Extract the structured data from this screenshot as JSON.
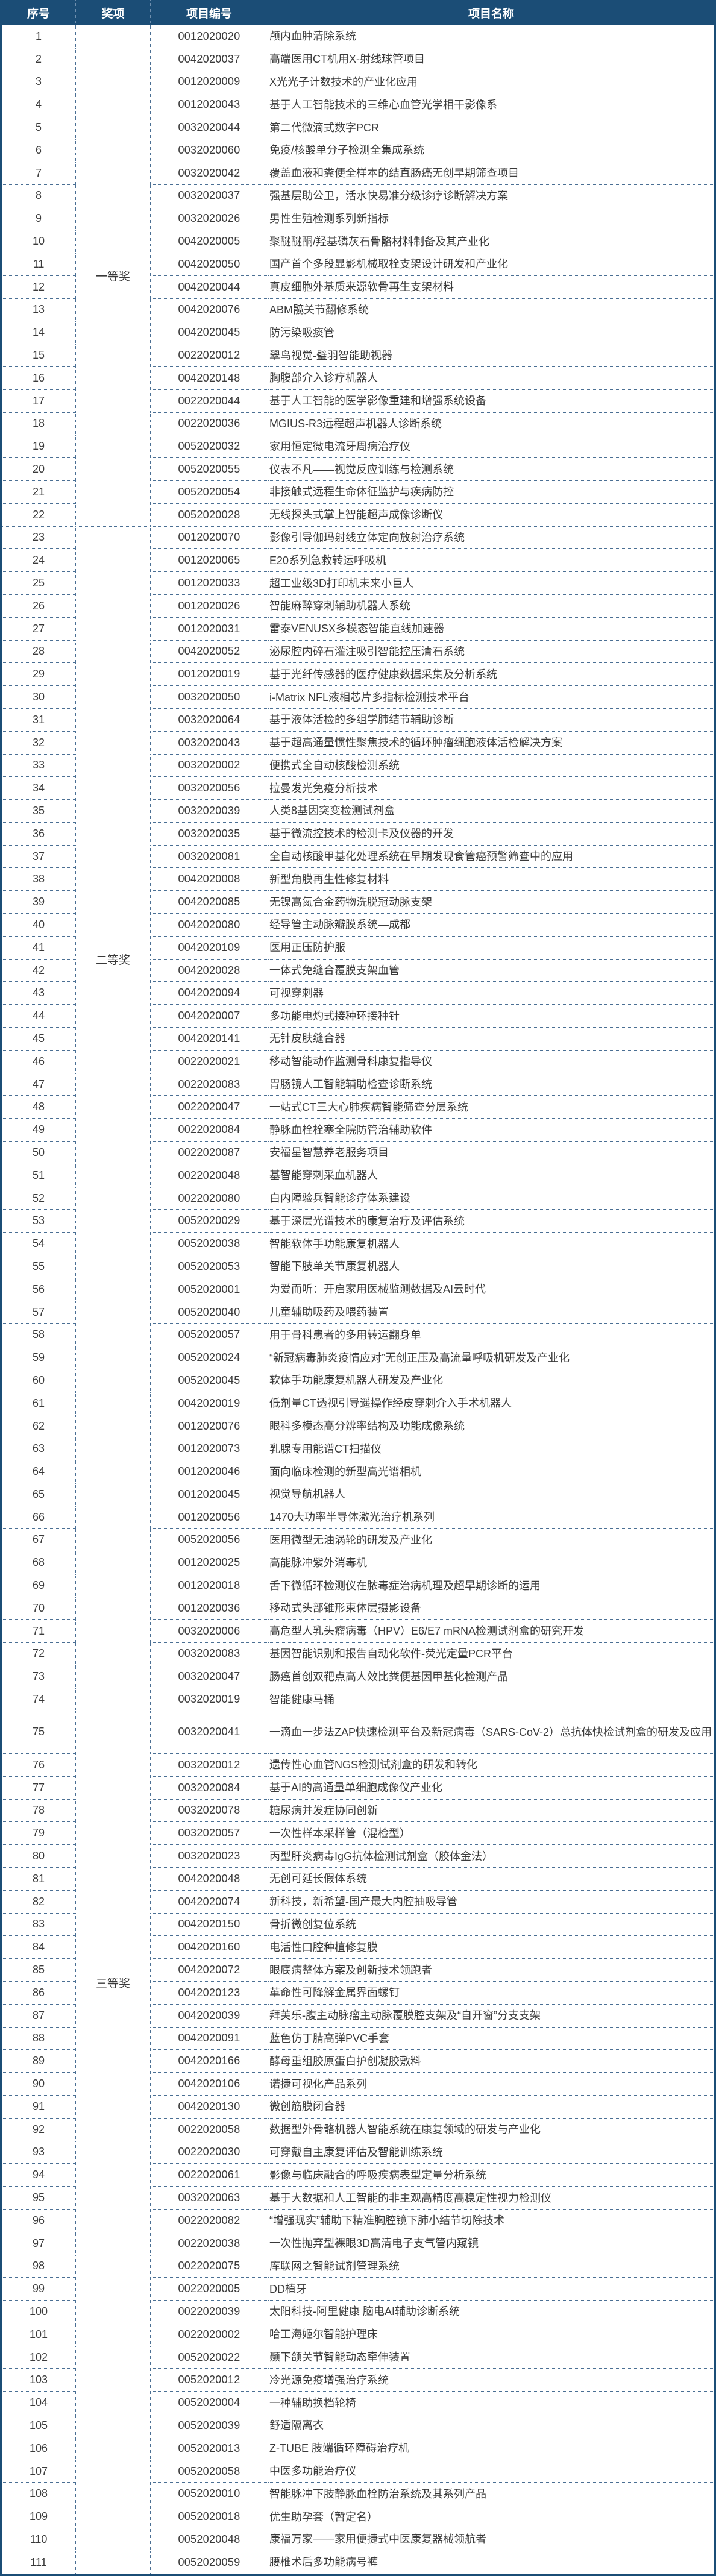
{
  "header": {
    "no": "序号",
    "award": "奖项",
    "code": "项目编号",
    "name": "项目名称"
  },
  "colors": {
    "header_bg": "#1b4d76",
    "header_text": "#ffffff",
    "border": "#4a6f93"
  },
  "groups": [
    {
      "label": "一等奖",
      "from": 1,
      "to": 22
    },
    {
      "label": "二等奖",
      "from": 23,
      "to": 60
    },
    {
      "label": "三等奖",
      "from": 61,
      "to": 111
    }
  ],
  "rows": [
    [
      "1",
      "0012020020",
      "颅内血肿清除系统"
    ],
    [
      "2",
      "0042020037",
      "高端医用CT机用X-射线球管项目"
    ],
    [
      "3",
      "0012020009",
      "X光光子计数技术的产业化应用"
    ],
    [
      "4",
      "0012020043",
      "基于人工智能技术的三维心血管光学相干影像系"
    ],
    [
      "5",
      "0032020044",
      "第二代微滴式数字PCR"
    ],
    [
      "6",
      "0032020060",
      "免疫/核酸单分子检测全集成系统"
    ],
    [
      "7",
      "0032020042",
      "覆盖血液和粪便全样本的结直肠癌无创早期筛查项目"
    ],
    [
      "8",
      "0032020037",
      "强基层助公卫，活水快易准分级诊疗诊断解决方案"
    ],
    [
      "9",
      "0032020026",
      "男性生殖检测系列新指标"
    ],
    [
      "10",
      "0042020005",
      "聚醚醚酮/羟基磷灰石骨骼材料制备及其产业化"
    ],
    [
      "11",
      "0042020050",
      "国产首个多段显影机械取栓支架设计研发和产业化"
    ],
    [
      "12",
      "0042020044",
      "真皮细胞外基质来源软骨再生支架材料"
    ],
    [
      "13",
      "0042020076",
      "ABM髋关节翻修系统"
    ],
    [
      "14",
      "0042020045",
      "防污染吸痰管"
    ],
    [
      "15",
      "0022020012",
      "翠鸟视觉-璧羽智能助视器"
    ],
    [
      "16",
      "0042020148",
      "胸腹部介入诊疗机器人"
    ],
    [
      "17",
      "0022020044",
      "基于人工智能的医学影像重建和增强系统设备"
    ],
    [
      "18",
      "0022020036",
      "MGIUS-R3远程超声机器人诊断系统"
    ],
    [
      "19",
      "0052020032",
      "家用恒定微电流牙周病治疗仪"
    ],
    [
      "20",
      "0052020055",
      "仪表不凡——视觉反应训练与检测系统"
    ],
    [
      "21",
      "0052020054",
      "非接触式远程生命体征监护与疾病防控"
    ],
    [
      "22",
      "0052020028",
      "无线探头式掌上智能超声成像诊断仪"
    ],
    [
      "23",
      "0012020070",
      "影像引导伽玛射线立体定向放射治疗系统"
    ],
    [
      "24",
      "0012020065",
      "E20系列急救转运呼吸机"
    ],
    [
      "25",
      "0012020033",
      "超工业级3D打印机未来小巨人"
    ],
    [
      "26",
      "0012020026",
      "智能麻醉穿刺辅助机器人系统"
    ],
    [
      "27",
      "0012020031",
      "雷泰VENUSX多模态智能直线加速器"
    ],
    [
      "28",
      "0042020052",
      "泌尿腔内碎石灌注吸引智能控压清石系统"
    ],
    [
      "29",
      "0012020019",
      "基于光纤传感器的医疗健康数据采集及分析系统"
    ],
    [
      "30",
      "0032020050",
      "i-Matrix NFL液相芯片多指标检测技术平台"
    ],
    [
      "31",
      "0032020064",
      "基于液体活检的多组学肺结节辅助诊断"
    ],
    [
      "32",
      "0032020043",
      "基于超高通量惯性聚焦技术的循环肿瘤细胞液体活检解决方案"
    ],
    [
      "33",
      "0032020002",
      "便携式全自动核酸检测系统"
    ],
    [
      "34",
      "0032020056",
      "拉曼发光免疫分析技术"
    ],
    [
      "35",
      "0032020039",
      "人类8基因突变检测试剂盒"
    ],
    [
      "36",
      "0032020035",
      "基于微流控技术的检测卡及仪器的开发"
    ],
    [
      "37",
      "0032020081",
      "全自动核酸甲基化处理系统在早期发现食管癌预警筛查中的应用"
    ],
    [
      "38",
      "0042020008",
      "新型角膜再生性修复材料"
    ],
    [
      "39",
      "0042020085",
      "无镍高氮合金药物洗脱冠动脉支架"
    ],
    [
      "40",
      "0042020080",
      "经导管主动脉瓣膜系统—成都"
    ],
    [
      "41",
      "0042020109",
      "医用正压防护服"
    ],
    [
      "42",
      "0042020028",
      "一体式免缝合覆膜支架血管"
    ],
    [
      "43",
      "0042020094",
      "可视穿刺器"
    ],
    [
      "44",
      "0042020007",
      "多功能电灼式接种环接种针"
    ],
    [
      "45",
      "0042020141",
      "无针皮肤缝合器"
    ],
    [
      "46",
      "0022020021",
      "移动智能动作监测骨科康复指导仪"
    ],
    [
      "47",
      "0022020083",
      "胃肠镜人工智能辅助检查诊断系统"
    ],
    [
      "48",
      "0022020047",
      "一站式CT三大心肺疾病智能筛查分层系统"
    ],
    [
      "49",
      "0022020084",
      "静脉血栓栓塞全院防管治辅助软件"
    ],
    [
      "50",
      "0022020087",
      "安福星智慧养老服务项目"
    ],
    [
      "51",
      "0022020048",
      "基智能穿刺采血机器人"
    ],
    [
      "52",
      "0022020080",
      "白内障验兵智能诊疗体系建设"
    ],
    [
      "53",
      "0052020029",
      "基于深层光谱技术的康复治疗及评估系统"
    ],
    [
      "54",
      "0052020038",
      "智能软体手功能康复机器人"
    ],
    [
      "55",
      "0052020053",
      "智能下肢单关节康复机器人"
    ],
    [
      "56",
      "0052020001",
      "为爱而听：开启家用医械监测数据及AI云时代"
    ],
    [
      "57",
      "0052020040",
      "儿童辅助吸药及喂药装置"
    ],
    [
      "58",
      "0052020057",
      "用于骨科患者的多用转运翻身单"
    ],
    [
      "59",
      "0052020024",
      "“新冠病毒肺炎疫情应对”无创正压及高流量呼吸机研发及产业化"
    ],
    [
      "60",
      "0052020045",
      "软体手功能康复机器人研发及产业化"
    ],
    [
      "61",
      "0042020019",
      "低剂量CT透视引导遥操作经皮穿刺介入手术机器人"
    ],
    [
      "62",
      "0012020076",
      "眼科多模态高分辨率结构及功能成像系统"
    ],
    [
      "63",
      "0012020073",
      "乳腺专用能谱CT扫描仪"
    ],
    [
      "64",
      "0012020046",
      "面向临床检测的新型高光谱相机"
    ],
    [
      "65",
      "0012020045",
      "视觉导航机器人"
    ],
    [
      "66",
      "0012020056",
      "1470大功率半导体激光治疗机系列"
    ],
    [
      "67",
      "0052020056",
      "医用微型无油涡轮的研发及产业化"
    ],
    [
      "68",
      "0012020025",
      "高能脉冲紫外消毒机"
    ],
    [
      "69",
      "0012020018",
      "舌下微循环检测仪在脓毒症治病机理及超早期诊断的运用"
    ],
    [
      "70",
      "0012020036",
      "移动式头部锥形束体层摄影设备"
    ],
    [
      "71",
      "0032020006",
      "高危型人乳头瘤病毒（HPV）E6/E7 mRNA检测试剂盒的研究开发"
    ],
    [
      "72",
      "0032020083",
      "基因智能识别和报告自动化软件-荧光定量PCR平台"
    ],
    [
      "73",
      "0032020047",
      "肠癌首创双靶点高人效比粪便基因甲基化检测产品"
    ],
    [
      "74",
      "0032020019",
      "智能健康马桶"
    ],
    [
      "75",
      "0032020041",
      "一滴血一步法ZAP快速检测平台及新冠病毒（SARS-CoV-2）总抗体快检试剂盒的研发及应用"
    ],
    [
      "76",
      "0032020012",
      "遗传性心血管NGS检测试剂盒的研发和转化"
    ],
    [
      "77",
      "0032020084",
      "基于AI的高通量单细胞成像仪产业化"
    ],
    [
      "78",
      "0032020078",
      "糖尿病并发症协同创新"
    ],
    [
      "79",
      "0032020057",
      "一次性样本采样管（混检型）"
    ],
    [
      "80",
      "0032020023",
      "丙型肝炎病毒IgG抗体检测试剂盒（胶体金法）"
    ],
    [
      "81",
      "0042020048",
      "无创可延长假体系统"
    ],
    [
      "82",
      "0042020074",
      "新科技，新希望-国产最大内腔抽吸导管"
    ],
    [
      "83",
      "0042020150",
      "骨折微创复位系统"
    ],
    [
      "84",
      "0042020160",
      "电活性口腔种植修复膜"
    ],
    [
      "85",
      "0042020072",
      "眼底病整体方案及创新技术领跑者"
    ],
    [
      "86",
      "0042020123",
      "革命性可降解金属界面螺钉"
    ],
    [
      "87",
      "0042020039",
      "拜芙乐-腹主动脉瘤主动脉覆膜腔支架及“自开窗”分支支架"
    ],
    [
      "88",
      "0042020091",
      "蓝色仿丁腈高弹PVC手套"
    ],
    [
      "89",
      "0042020166",
      "酵母重组胶原蛋白护创凝胶敷料"
    ],
    [
      "90",
      "0042020106",
      "诺捷可视化产品系列"
    ],
    [
      "91",
      "0042020130",
      "微创筋膜闭合器"
    ],
    [
      "92",
      "0022020058",
      "数据型外骨骼机器人智能系统在康复领域的研发与产业化"
    ],
    [
      "93",
      "0022020030",
      "可穿戴自主康复评估及智能训练系统"
    ],
    [
      "94",
      "0022020061",
      "影像与临床融合的呼吸疾病表型定量分析系统"
    ],
    [
      "95",
      "0032020063",
      "基于大数据和人工智能的非主观高精度高稳定性视力检测仪"
    ],
    [
      "96",
      "0022020082",
      "“增强现实”辅助下精准胸腔镜下肺小结节切除技术"
    ],
    [
      "97",
      "0022020038",
      "一次性抛弃型裸眼3D高清电子支气管内窥镜"
    ],
    [
      "98",
      "0022020075",
      "库联网之智能试剂管理系统"
    ],
    [
      "99",
      "0022020005",
      "DD植牙"
    ],
    [
      "100",
      "0022020039",
      "太阳科技-阿里健康 脑电AI辅助诊断系统"
    ],
    [
      "101",
      "0022020002",
      "哈工海姬尔智能护理床"
    ],
    [
      "102",
      "0052020022",
      "颞下颌关节智能动态牵伸装置"
    ],
    [
      "103",
      "0052020012",
      "冷光源免疫增强治疗系统"
    ],
    [
      "104",
      "0052020004",
      "一种辅助换档轮椅"
    ],
    [
      "105",
      "0052020039",
      "舒适隔离衣"
    ],
    [
      "106",
      "0052020013",
      "Z-TUBE 肢端循环障碍治疗机"
    ],
    [
      "107",
      "0052020058",
      "中医多功能治疗仪"
    ],
    [
      "108",
      "0052020010",
      "智能脉冲下肢静脉血栓防治系统及其系列产品"
    ],
    [
      "109",
      "0052020018",
      "优生助孕套（暂定名）"
    ],
    [
      "110",
      "0052020048",
      "康福万家——家用便捷式中医康复器械领航者"
    ],
    [
      "111",
      "0052020059",
      "腰椎术后多功能病号裤"
    ]
  ]
}
